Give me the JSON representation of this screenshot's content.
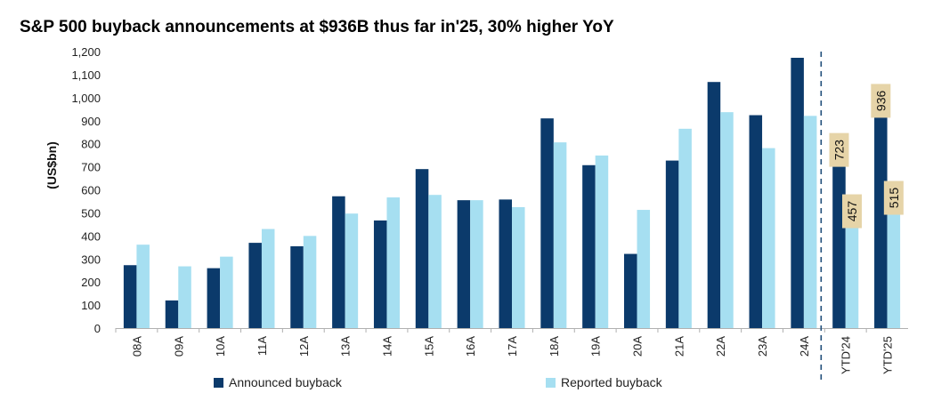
{
  "chart_data": {
    "type": "bar",
    "title": "S&P 500 buyback announcements at $936B thus far in'25, 30% higher YoY",
    "ylabel": "(US$bn)",
    "ylim": [
      0,
      1200
    ],
    "yticks": [
      "0",
      "100",
      "200",
      "300",
      "400",
      "500",
      "600",
      "700",
      "800",
      "900",
      "1,000",
      "1,100",
      "1,200"
    ],
    "categories": [
      "08A",
      "09A",
      "10A",
      "11A",
      "12A",
      "13A",
      "14A",
      "15A",
      "16A",
      "17A",
      "18A",
      "19A",
      "20A",
      "21A",
      "22A",
      "23A",
      "24A",
      "YTD'24",
      "YTD'25"
    ],
    "series": [
      {
        "name": "Announced buyback",
        "color": "#0b3a6b",
        "values": [
          273,
          120,
          260,
          370,
          355,
          572,
          467,
          690,
          555,
          558,
          910,
          707,
          322,
          727,
          1068,
          924,
          1173,
          723,
          936
        ]
      },
      {
        "name": "Reported buyback",
        "color": "#a6dff1",
        "values": [
          362,
          268,
          310,
          430,
          400,
          497,
          567,
          578,
          555,
          525,
          806,
          749,
          513,
          865,
          937,
          781,
          921,
          457,
          515
        ]
      }
    ],
    "data_labels": [
      {
        "category": "YTD'24",
        "series": 0,
        "text": "723"
      },
      {
        "category": "YTD'24",
        "series": 1,
        "text": "457"
      },
      {
        "category": "YTD'25",
        "series": 0,
        "text": "936"
      },
      {
        "category": "YTD'25",
        "series": 1,
        "text": "515"
      }
    ],
    "separator_before": "YTD'24",
    "legend": "bottom",
    "grid": false
  }
}
